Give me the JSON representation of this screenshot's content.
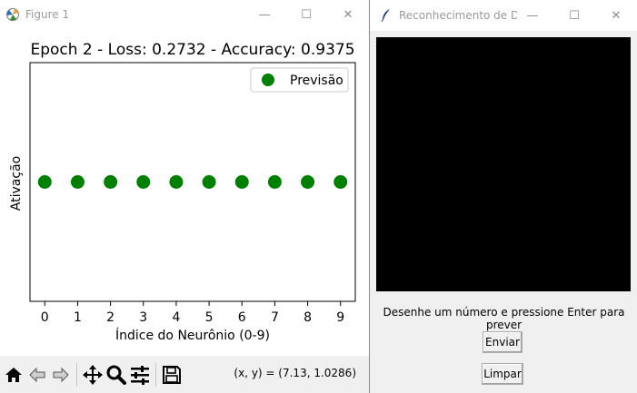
{
  "figure_window": {
    "title": "Figure 1",
    "controls": {
      "minimize": "—",
      "maximize": "☐",
      "close": "✕"
    },
    "toolbar": {
      "icons": [
        "home-icon",
        "back-arrow-icon",
        "forward-arrow-icon",
        "pan-move-icon",
        "zoom-magnifier-icon",
        "configure-subplots-icon",
        "save-floppy-icon"
      ],
      "coordinates": "(x, y) = (7.13, 1.0286)"
    }
  },
  "chart_data": {
    "type": "scatter",
    "title": "Epoch 2 - Loss: 0.2732 - Accuracy: 0.9375",
    "xlabel": "Índice do Neurônio (0-9)",
    "ylabel": "Ativação",
    "x": [
      0,
      1,
      2,
      3,
      4,
      5,
      6,
      7,
      8,
      9
    ],
    "series": [
      {
        "name": "Previsão",
        "color": "#008000",
        "values": [
          1,
          1,
          1,
          1,
          1,
          1,
          1,
          1,
          1,
          1
        ]
      }
    ],
    "xticks": [
      "0",
      "1",
      "2",
      "3",
      "4",
      "5",
      "6",
      "7",
      "8",
      "9"
    ],
    "xlim": [
      -0.45,
      9.45
    ],
    "ylim": [
      0.945,
      1.055
    ],
    "legend_position": "top-right",
    "grid": false
  },
  "app_window": {
    "title": "Reconhecimento de D...",
    "controls": {
      "minimize": "—",
      "maximize": "☐",
      "close": "✕"
    },
    "canvas_color": "#000000",
    "instruction": "Desenhe um número e pressione Enter para prever",
    "buttons": {
      "submit": "Enviar",
      "clear": "Limpar"
    }
  }
}
